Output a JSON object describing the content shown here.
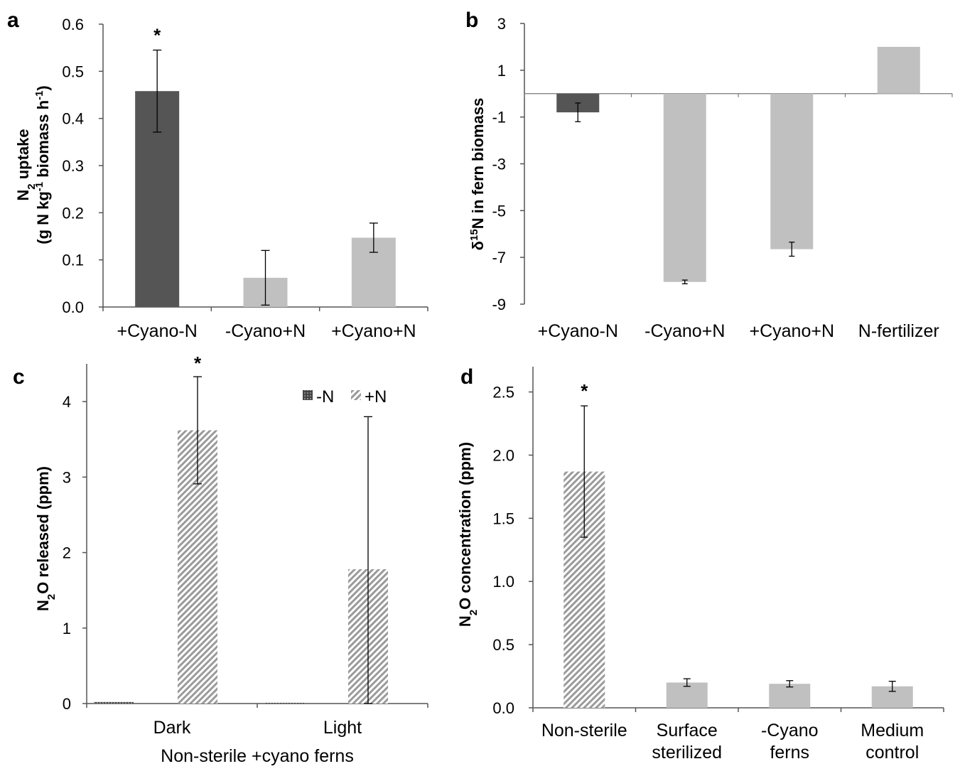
{
  "chart_data": [
    {
      "panel": "a",
      "type": "bar",
      "categories": [
        "+Cyano-N",
        "-Cyano+N",
        "+Cyano+N"
      ],
      "values": [
        0.458,
        0.062,
        0.147
      ],
      "errors": [
        0.087,
        0.058,
        0.031
      ],
      "significance": [
        "*",
        "",
        ""
      ],
      "bar_colors": [
        "#555555",
        "#c0c0c0",
        "#c0c0c0"
      ],
      "ylabel_line1": "N2 uptake",
      "ylabel_line2": "(g N kg-1 biomass h-1)",
      "ylim": [
        0,
        0.6
      ],
      "yticks": [
        "0.0",
        "0.1",
        "0.2",
        "0.3",
        "0.4",
        "0.5",
        "0.6"
      ],
      "grid": false
    },
    {
      "panel": "b",
      "type": "bar",
      "categories": [
        "+Cyano-N",
        "-Cyano+N",
        "+Cyano+N",
        "N-fertilizer"
      ],
      "values": [
        -0.8,
        -8.05,
        -6.65,
        2.0
      ],
      "errors": [
        0.4,
        0.08,
        0.3,
        0
      ],
      "bar_colors": [
        "#555555",
        "#c0c0c0",
        "#c0c0c0",
        "#c0c0c0"
      ],
      "ylabel": "δ15N in fern biomass",
      "ylim": [
        -9,
        3
      ],
      "yticks": [
        "-9",
        "-7",
        "-5",
        "-3",
        "-1",
        "1",
        "3"
      ],
      "grid": false
    },
    {
      "panel": "c",
      "type": "bar",
      "categories": [
        "Dark",
        "Light"
      ],
      "series": [
        {
          "name": "-N",
          "values": [
            0.02,
            0.01
          ],
          "errors": [
            0,
            0
          ],
          "color": "#555555"
        },
        {
          "name": "+N",
          "values": [
            3.62,
            1.78
          ],
          "errors": [
            0.71,
            2.02
          ],
          "color": "#c0c0c0"
        }
      ],
      "significance": [
        "*",
        ""
      ],
      "xlabel": "Non-sterile +cyano ferns",
      "ylabel": "N2O  released (ppm)",
      "ylim": [
        0,
        4.5
      ],
      "yticks": [
        "0",
        "1",
        "2",
        "3",
        "4"
      ],
      "legend_position": "top-right",
      "grid": false
    },
    {
      "panel": "d",
      "type": "bar",
      "categories": [
        "Non-sterile",
        "Surface sterilized",
        "-Cyano ferns",
        "Medium control"
      ],
      "category_lines": [
        [
          "Non-sterile"
        ],
        [
          "Surface",
          "sterilized"
        ],
        [
          "-Cyano",
          "ferns"
        ],
        [
          "Medium",
          "control"
        ]
      ],
      "values": [
        1.87,
        0.2,
        0.19,
        0.17
      ],
      "errors": [
        0.52,
        0.03,
        0.025,
        0.04
      ],
      "significance": [
        "*",
        "",
        "",
        ""
      ],
      "bar_colors": [
        "#b0b0b0",
        "#c0c0c0",
        "#c0c0c0",
        "#c0c0c0"
      ],
      "bar_hatched": [
        true,
        false,
        false,
        false
      ],
      "ylabel": "N2O concentration (ppm)",
      "ylim": [
        0,
        2.7
      ],
      "yticks": [
        "0.0",
        "0.5",
        "1.0",
        "1.5",
        "2.0",
        "2.5"
      ],
      "grid": false
    }
  ]
}
